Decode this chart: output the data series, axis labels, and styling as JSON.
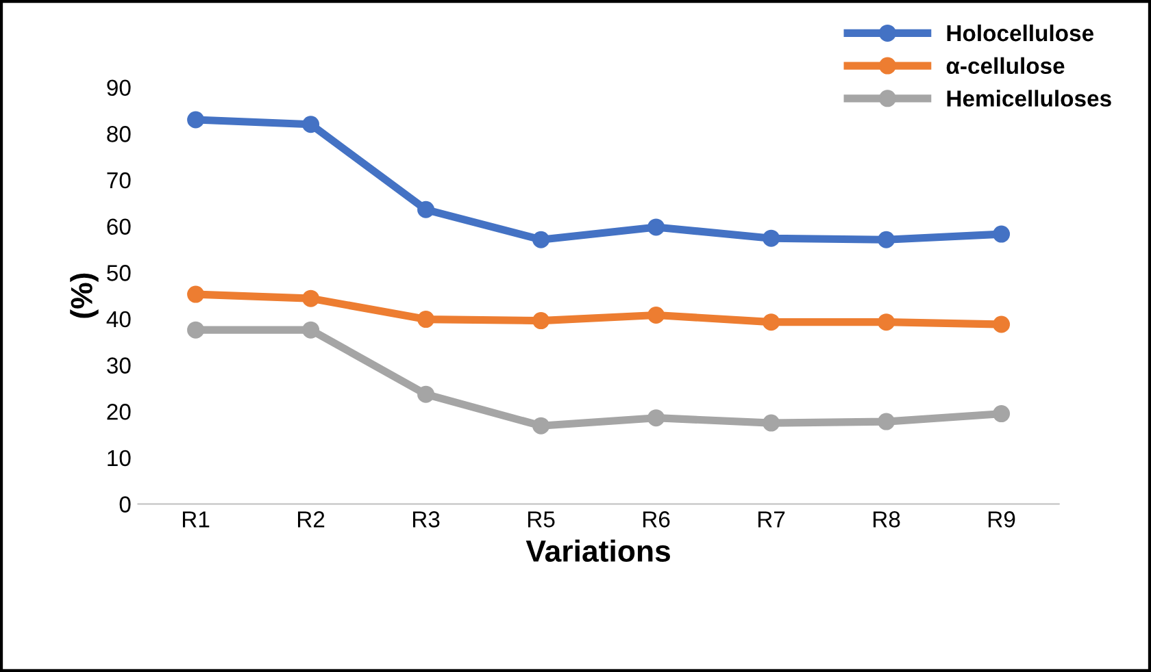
{
  "chart_data": {
    "type": "line",
    "xlabel": "Variations",
    "ylabel": "(%)",
    "categories": [
      "R1",
      "R2",
      "R3",
      "R5",
      "R6",
      "R7",
      "R8",
      "R9"
    ],
    "series": [
      {
        "name": "Holocellulose",
        "color": "#4472c4",
        "values": [
          83,
          82,
          63.6,
          57.1,
          59.8,
          57.4,
          57.1,
          58.3
        ]
      },
      {
        "name": "α-cellulose",
        "color": "#ed7d31",
        "values": [
          45.3,
          44.4,
          39.9,
          39.6,
          40.8,
          39.3,
          39.3,
          38.8
        ]
      },
      {
        "name": "Hemicelluloses",
        "color": "#a5a5a5",
        "values": [
          37.6,
          37.6,
          23.7,
          16.9,
          18.6,
          17.5,
          17.8,
          19.5
        ]
      }
    ],
    "ylim": [
      0,
      90
    ],
    "yticks": [
      0,
      10,
      20,
      30,
      40,
      50,
      60,
      70,
      80,
      90
    ],
    "grid": false,
    "legend": "top right",
    "marker": "circle",
    "line_style": "solid"
  }
}
